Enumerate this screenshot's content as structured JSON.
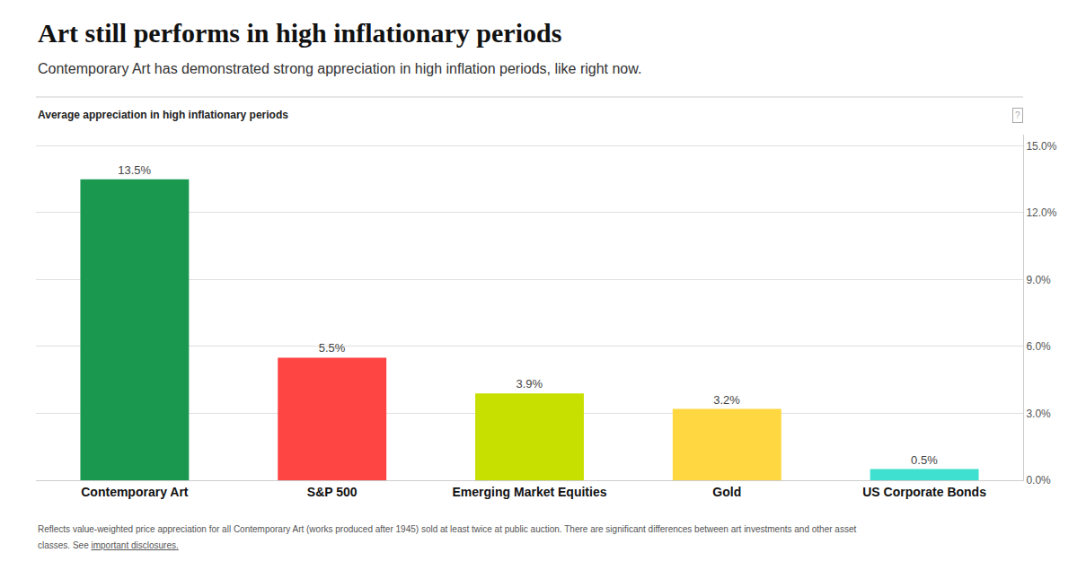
{
  "chart_data": {
    "type": "bar",
    "title": "Art still performs in high inflationary periods",
    "subtitle": "Contemporary Art has demonstrated strong appreciation in high inflation periods, like right now.",
    "chart_label": "Average appreciation in high inflationary periods",
    "annotations": [
      "?"
    ],
    "categories": [
      "Contemporary Art",
      "S&P 500",
      "Emerging Market Equities",
      "Gold",
      "US Corporate Bonds"
    ],
    "values": [
      13.5,
      5.5,
      3.9,
      3.2,
      0.5
    ],
    "value_labels": [
      "13.5%",
      "5.5%",
      "3.9%",
      "3.2%",
      "0.5%"
    ],
    "colors": [
      "#1a9850",
      "#ff4444",
      "#c8e000",
      "#ffd740",
      "#40e0d0"
    ],
    "data_labels": true,
    "ylim": [
      0,
      15.5
    ],
    "yticks": [
      {
        "value": 0.0,
        "label": "0.0%"
      },
      {
        "value": 3.0,
        "label": "3.0%"
      },
      {
        "value": 6.0,
        "label": "6.0%"
      },
      {
        "value": 9.0,
        "label": "9.0%"
      },
      {
        "value": 12.0,
        "label": "12.0%"
      },
      {
        "value": 15.0,
        "label": "15.0%"
      }
    ],
    "grid": true,
    "footnote_line1": "Reflects value-weighted price appreciation for all Contemporary Art (works produced after 1945) sold at least twice at public auction. There are significant differences between art investments and other asset",
    "footnote_line2": "classes. See ",
    "footnote_link": "important disclosures."
  }
}
